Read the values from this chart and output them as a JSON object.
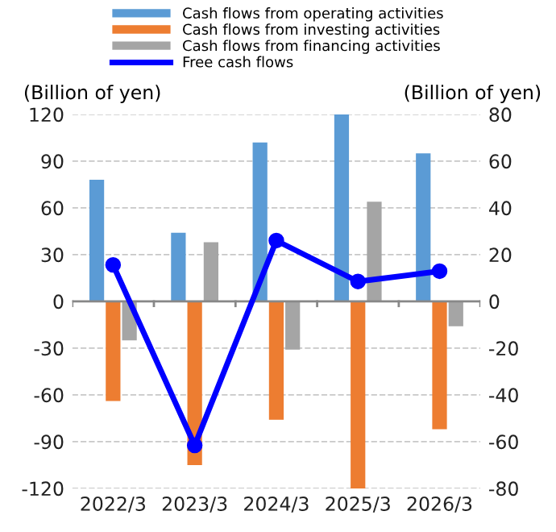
{
  "chart_data": {
    "type": "bar",
    "categories": [
      "2022/3",
      "2023/3",
      "2024/3",
      "2025/3",
      "2026/3"
    ],
    "ylabel": "(Billion of yen)",
    "y2label": "(Billion of yen)",
    "series": [
      {
        "name": "Cash flows from operating activities",
        "color": "#5b9bd5",
        "values": [
          78,
          44,
          102,
          120,
          95
        ]
      },
      {
        "name": "Cash flows from investing activities",
        "color": "#ed7d31",
        "values": [
          -64,
          -105,
          -76,
          -120,
          -82
        ]
      },
      {
        "name": "Cash flows from financing activities",
        "color": "#a5a5a5",
        "values": [
          -25,
          38,
          -31,
          64,
          -16
        ]
      },
      {
        "name": "Free cash flows",
        "color": "#0000ff",
        "type": "line",
        "axis": "y2",
        "marker": "circle",
        "values": [
          15.6,
          -61.6,
          26,
          8.5,
          12.9
        ]
      }
    ],
    "ylim": [
      -120,
      120
    ],
    "yticks": [
      -120,
      -90,
      -60,
      -30,
      0,
      30,
      60,
      90,
      120
    ],
    "y2lim": [
      -80,
      80
    ],
    "y2ticks": [
      -80,
      -60,
      -40,
      -20,
      0,
      20,
      40,
      60,
      80
    ],
    "grid": "y",
    "legend": "top"
  }
}
